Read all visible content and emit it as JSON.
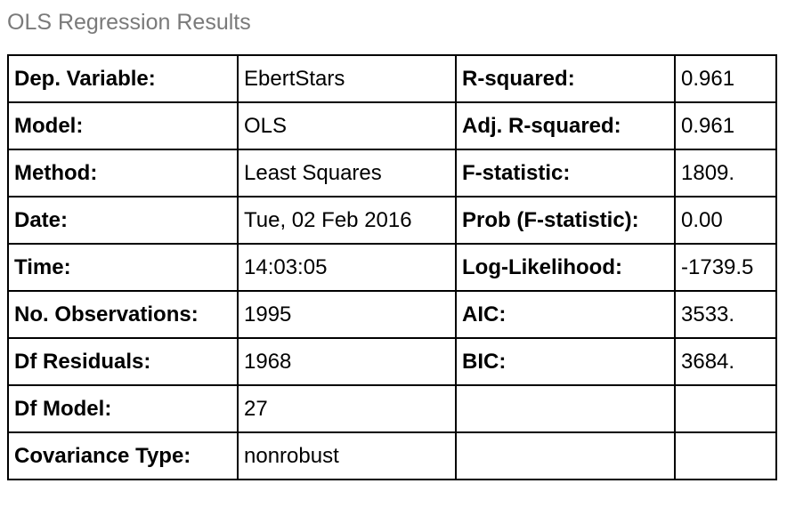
{
  "caption": "OLS Regression Results",
  "rows": [
    {
      "label_left": "Dep. Variable:",
      "value_left": "EbertStars",
      "label_right": "R-squared:",
      "value_right": "0.961"
    },
    {
      "label_left": "Model:",
      "value_left": "OLS",
      "label_right": "Adj. R-squared:",
      "value_right": "0.961"
    },
    {
      "label_left": "Method:",
      "value_left": "Least Squares",
      "label_right": "F-statistic:",
      "value_right": "1809."
    },
    {
      "label_left": "Date:",
      "value_left": "Tue, 02 Feb 2016",
      "label_right": "Prob (F-statistic):",
      "value_right": "0.00"
    },
    {
      "label_left": "Time:",
      "value_left": "14:03:05",
      "label_right": "Log-Likelihood:",
      "value_right": "-1739.5"
    },
    {
      "label_left": "No. Observations:",
      "value_left": "1995",
      "label_right": "AIC:",
      "value_right": "3533."
    },
    {
      "label_left": "Df Residuals:",
      "value_left": "1968",
      "label_right": "BIC:",
      "value_right": "3684."
    },
    {
      "label_left": "Df Model:",
      "value_left": "27",
      "label_right": "",
      "value_right": ""
    },
    {
      "label_left": "Covariance Type:",
      "value_left": "nonrobust",
      "label_right": "",
      "value_right": ""
    }
  ]
}
